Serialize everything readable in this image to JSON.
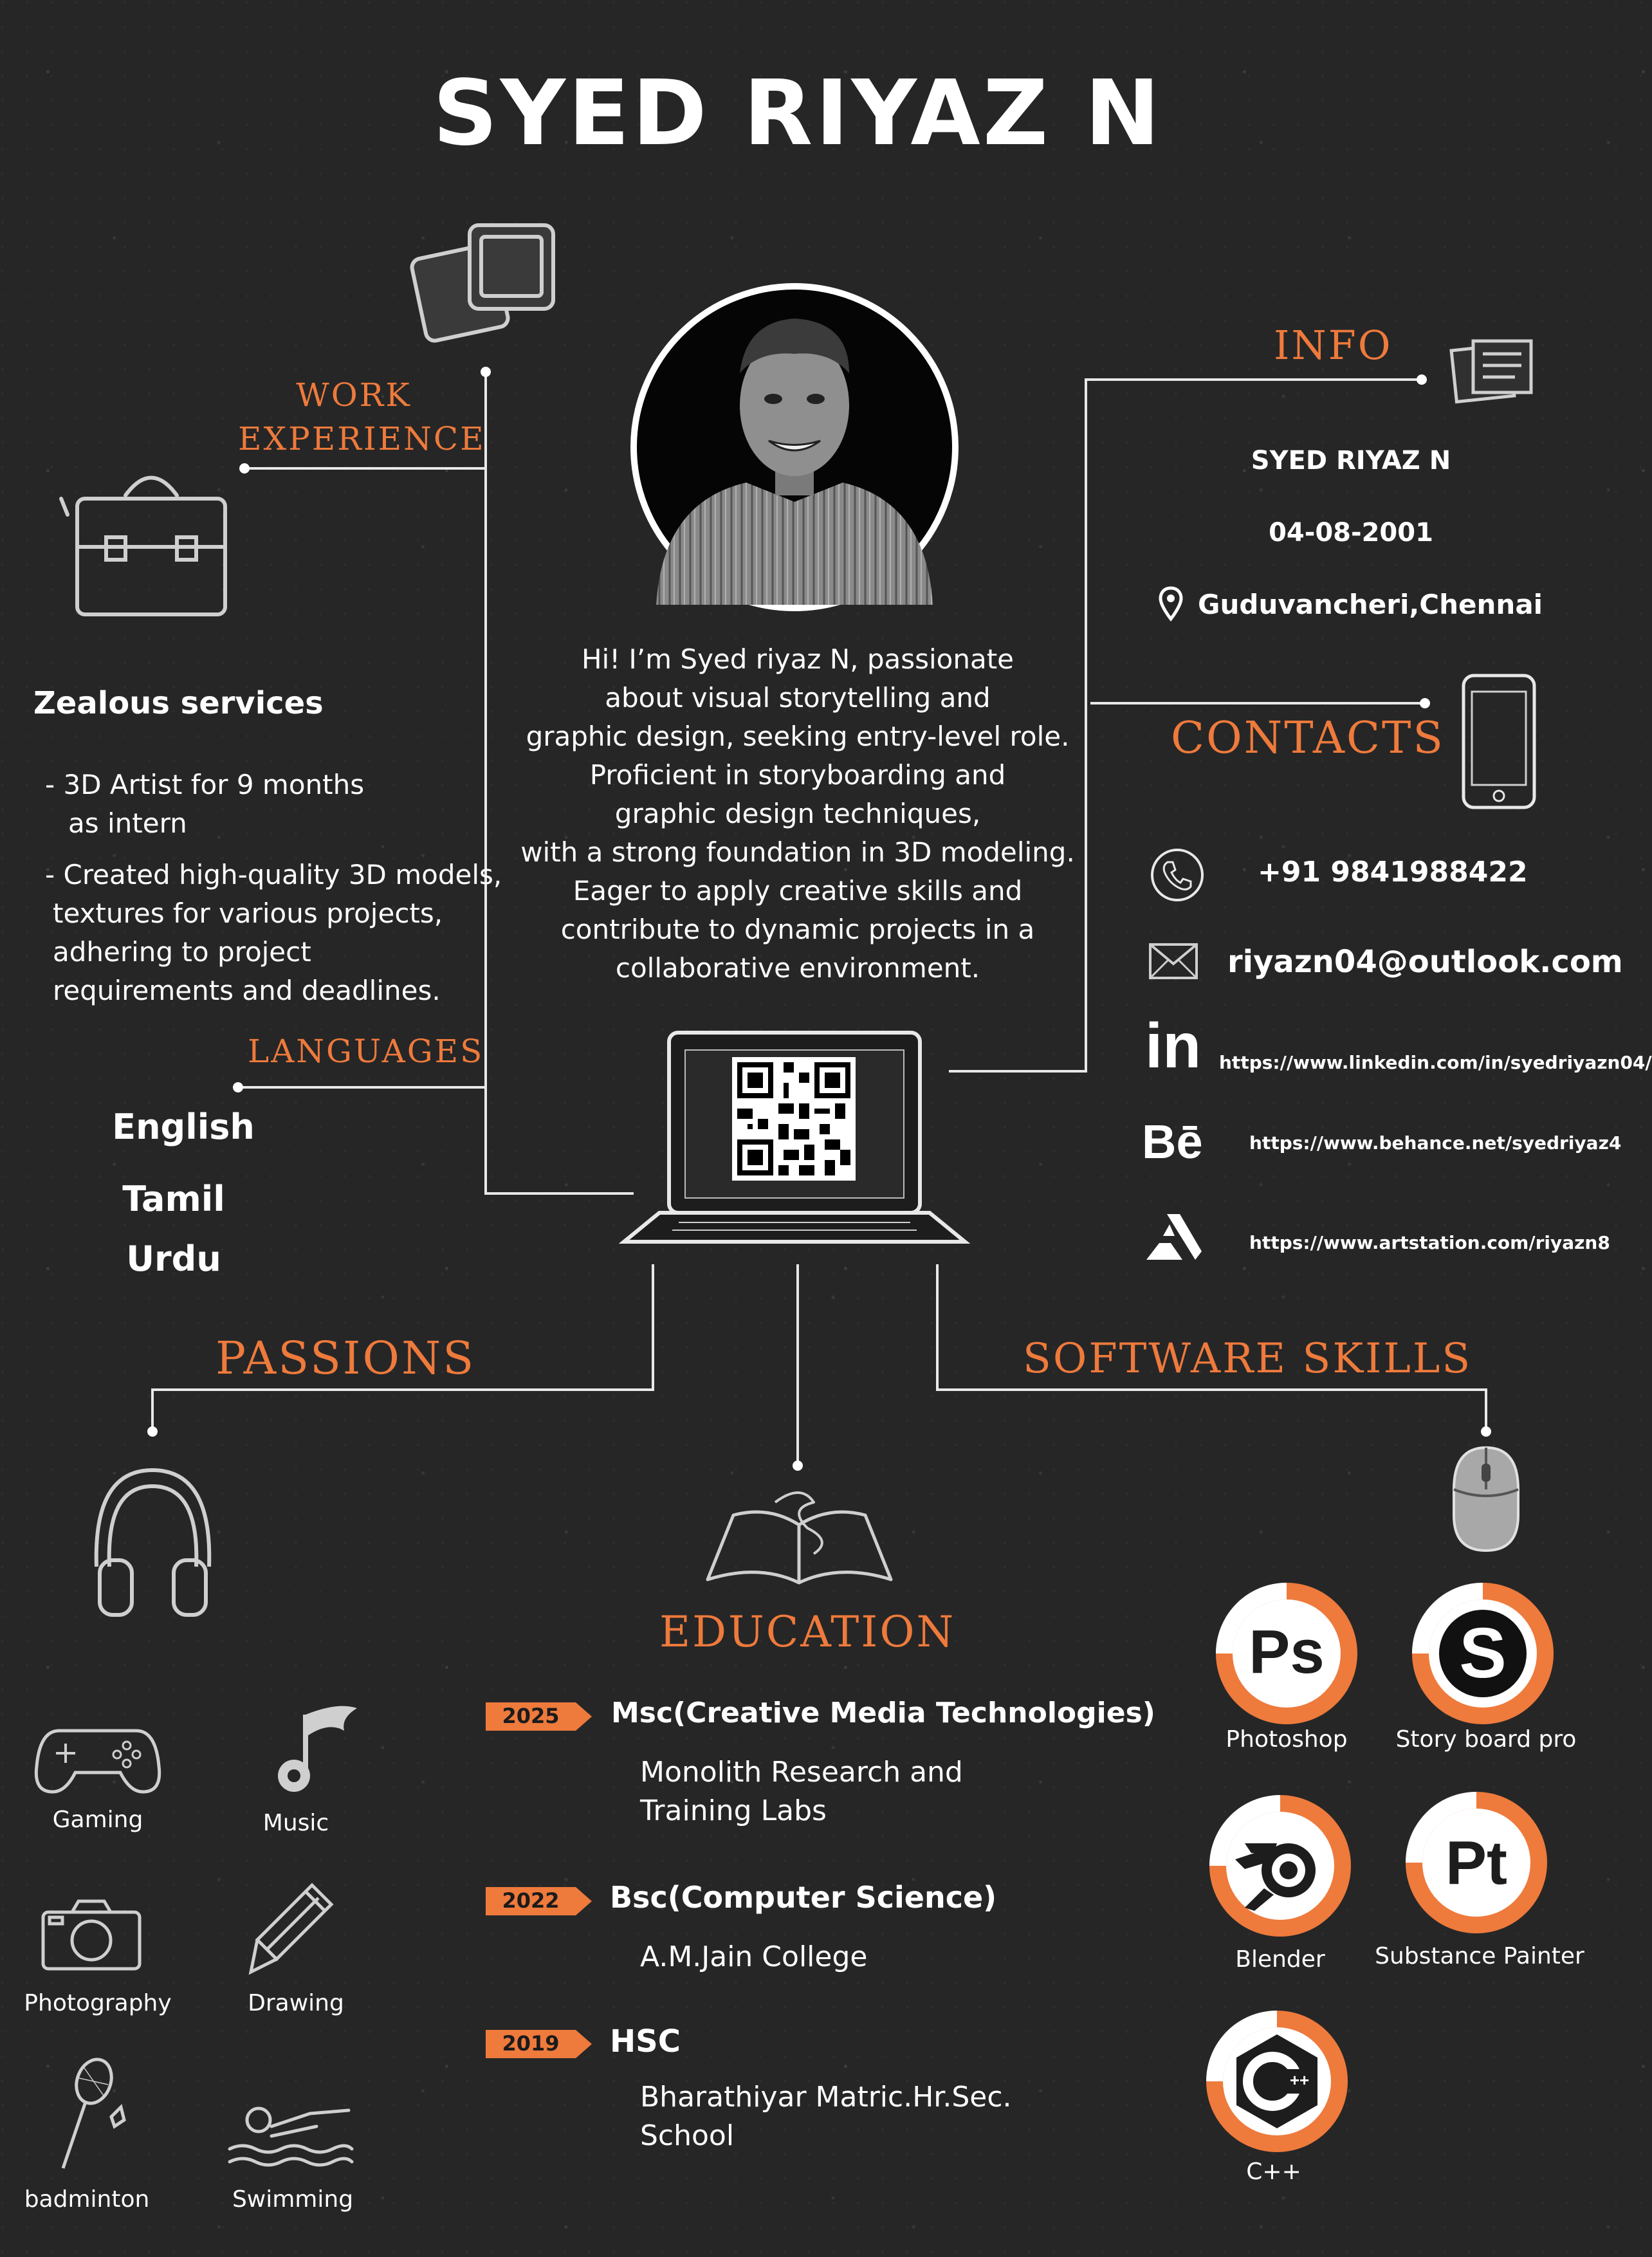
{
  "name": "SYED RIYAZ N",
  "headings": {
    "work_experience_line1": "WORK",
    "work_experience_line2": "EXPERIENCE",
    "info": "INFO",
    "contacts": "CONTACTS",
    "languages": "LANGUAGES",
    "passions": "PASSIONS",
    "software_skills": "SOFTWARE SKILLS",
    "education": "EDUCATION"
  },
  "bio": [
    "Hi! I’m Syed riyaz N, passionate",
    "about visual storytelling and",
    "graphic design, seeking entry-level role.",
    "Proficient in storyboarding and",
    "graphic design techniques,",
    "with a strong foundation in 3D modeling.",
    "Eager to apply creative skills and",
    "contribute to dynamic projects in a",
    "collaborative environment."
  ],
  "work": {
    "company": "Zealous services",
    "bullet1_line1": "- 3D Artist for 9 months",
    "bullet1_line2": "as intern",
    "bullet2_line1": "- Created high-quality 3D models,",
    "bullet2_line2": "textures for various projects,",
    "bullet2_line3": "adhering to project",
    "bullet2_line4": "requirements and deadlines."
  },
  "languages": [
    "English",
    "Tamil",
    "Urdu"
  ],
  "info": {
    "name": "SYED RIYAZ N",
    "dob": "04-08-2001",
    "location": "Guduvancheri,Chennai"
  },
  "contacts": {
    "phone": "+91 9841988422",
    "email": "riyazn04@outlook.com",
    "linkedin_icon_text": "in",
    "linkedin": "https://www.linkedin.com/in/syedriyazn04/",
    "behance_icon_text": "Bē",
    "behance": "https://www.behance.net/syedriyaz4",
    "artstation": "https://www.artstation.com/riyazn8"
  },
  "passions": [
    "Gaming",
    "Music",
    "Photography",
    "Drawing",
    "badminton",
    "Swimming"
  ],
  "education": [
    {
      "year": "2025",
      "degree": "Msc(Creative Media Technologies)",
      "inst_line1": "Monolith Research and",
      "inst_line2": "Training Labs"
    },
    {
      "year": "2022",
      "degree": "Bsc(Computer Science)",
      "inst_line1": "A.M.Jain College",
      "inst_line2": ""
    },
    {
      "year": "2019",
      "degree": "HSC",
      "inst_line1": "Bharathiyar Matric.Hr.Sec.",
      "inst_line2": "School"
    }
  ],
  "software": [
    {
      "label": "Photoshop",
      "glyph": "Ps"
    },
    {
      "label": "Story board pro",
      "glyph": "S"
    },
    {
      "label": "Blender",
      "glyph": ""
    },
    {
      "label": "Substance Painter",
      "glyph": "Pt"
    },
    {
      "label": "C++",
      "glyph": "C"
    }
  ],
  "colors": {
    "accent": "#ee7a3c",
    "background": "#262626",
    "text": "#ffffff"
  }
}
